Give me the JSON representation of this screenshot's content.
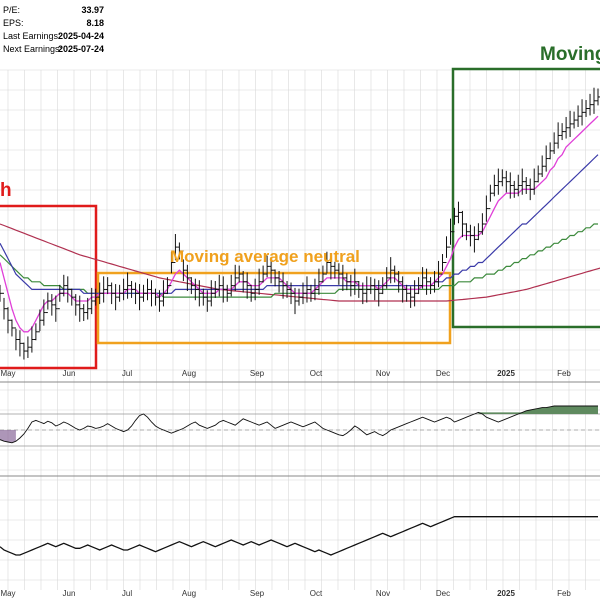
{
  "stats": [
    {
      "label": "P/E:",
      "value": "33.97"
    },
    {
      "label": "EPS:",
      "value": "8.18"
    },
    {
      "label": "Last Earnings:",
      "value": "2025-04-24"
    },
    {
      "label": "Next Earnings:",
      "value": "2025-07-24"
    }
  ],
  "annotations": {
    "left_fragment": "h",
    "neutral": "Moving average neutral",
    "right_fragment": "Moving"
  },
  "colors": {
    "red": "#e01b1b",
    "orange": "#f0a11e",
    "green": "#2a6e2a",
    "price": "#111111",
    "ma_pink": "#e040d8",
    "ma_blue": "#3a3aa8",
    "ma_green": "#3c8a3c",
    "ma_maroon": "#b03050",
    "rsi_fill": "#5f8a5f",
    "grid": "#d8d8d8"
  },
  "chart_data": [
    {
      "type": "line",
      "title": "",
      "x_axis_labels": [
        "May",
        "Jun",
        "Jul",
        "Aug",
        "Sep",
        "Oct",
        "Nov",
        "Dec",
        "2025",
        "Feb"
      ],
      "series": [
        {
          "role": "price",
          "values": [
            62,
            58,
            55,
            53,
            50,
            49,
            47,
            48,
            50,
            52,
            55,
            57,
            60,
            59,
            58,
            62,
            64,
            63,
            61,
            59,
            58,
            57,
            58,
            60,
            61,
            62,
            63,
            64,
            62,
            61,
            62,
            63,
            64,
            63,
            62,
            61,
            62,
            63,
            62,
            61,
            60,
            62,
            64,
            70,
            74,
            73,
            68,
            66,
            64,
            63,
            62,
            61,
            60,
            62,
            63,
            64,
            63,
            62,
            64,
            66,
            67,
            65,
            64,
            62,
            63,
            65,
            67,
            69,
            68,
            66,
            65,
            64,
            63,
            62,
            60,
            61,
            62,
            63,
            62,
            63,
            65,
            67,
            70,
            69,
            68,
            67,
            66,
            65,
            64,
            65,
            63,
            62,
            63,
            64,
            63,
            62,
            64,
            66,
            68,
            67,
            65,
            63,
            62,
            61,
            62,
            64,
            66,
            65,
            64,
            65,
            67,
            70,
            74,
            78,
            82,
            83,
            80,
            78,
            77,
            76,
            78,
            80,
            84,
            88,
            90,
            91,
            92,
            91,
            90,
            89,
            90,
            91,
            90,
            89,
            91,
            93,
            95,
            97,
            99,
            101,
            103,
            104,
            105,
            106,
            107,
            108,
            109,
            110,
            111,
            112,
            113
          ]
        },
        {
          "role": "ma_pink",
          "values": [
            70,
            66,
            62,
            58,
            55,
            53,
            52,
            52,
            53,
            55,
            57,
            59,
            60,
            60,
            61,
            62,
            62,
            62,
            61,
            60,
            60,
            60,
            60,
            61,
            61,
            62,
            62,
            62,
            62,
            62,
            62,
            62,
            63,
            63,
            63,
            62,
            62,
            62,
            62,
            62,
            61,
            62,
            63,
            65,
            67,
            68,
            67,
            66,
            65,
            64,
            63,
            62,
            62,
            62,
            62,
            63,
            63,
            63,
            63,
            64,
            65,
            65,
            65,
            64,
            64,
            64,
            65,
            66,
            66,
            66,
            66,
            65,
            64,
            63,
            62,
            62,
            62,
            62,
            62,
            63,
            64,
            65,
            66,
            66,
            66,
            66,
            66,
            65,
            65,
            65,
            64,
            64,
            64,
            64,
            64,
            63,
            64,
            65,
            66,
            66,
            65,
            64,
            63,
            63,
            63,
            63,
            64,
            64,
            64,
            65,
            66,
            67,
            69,
            71,
            74,
            76,
            77,
            77,
            77,
            77,
            77,
            78,
            80,
            82,
            84,
            86,
            87,
            88,
            88,
            88,
            88,
            89,
            89,
            89,
            89,
            90,
            91,
            92,
            94,
            95,
            97,
            98,
            100,
            101,
            102,
            103,
            104,
            105,
            106,
            107,
            108
          ]
        },
        {
          "role": "ma_blue",
          "values": [
            75,
            73,
            71,
            69,
            67,
            66,
            65,
            64,
            63,
            63,
            63,
            63,
            63,
            63,
            63,
            63,
            63,
            63,
            63,
            63,
            63,
            62,
            62,
            62,
            62,
            62,
            62,
            62,
            62,
            62,
            62,
            62,
            62,
            62,
            62,
            62,
            62,
            62,
            62,
            62,
            62,
            62,
            62,
            62,
            63,
            63,
            63,
            63,
            63,
            63,
            63,
            63,
            63,
            63,
            63,
            63,
            63,
            63,
            63,
            63,
            63,
            63,
            63,
            63,
            63,
            63,
            63,
            64,
            64,
            64,
            64,
            64,
            64,
            64,
            64,
            64,
            64,
            64,
            64,
            64,
            64,
            64,
            64,
            64,
            64,
            64,
            64,
            64,
            64,
            64,
            64,
            64,
            64,
            64,
            64,
            64,
            64,
            64,
            64,
            64,
            64,
            64,
            64,
            64,
            64,
            64,
            64,
            64,
            64,
            65,
            65,
            65,
            66,
            66,
            67,
            67,
            68,
            68,
            69,
            69,
            70,
            70,
            71,
            72,
            73,
            74,
            75,
            76,
            77,
            78,
            79,
            80,
            80,
            81,
            82,
            83,
            84,
            85,
            86,
            87,
            88,
            89,
            90,
            91,
            92,
            93,
            94,
            95,
            96,
            97,
            98
          ]
        },
        {
          "role": "ma_green",
          "values": [
            72,
            71,
            70,
            69,
            68,
            67,
            66,
            66,
            65,
            65,
            65,
            64,
            64,
            64,
            64,
            64,
            63,
            63,
            63,
            63,
            63,
            63,
            62,
            62,
            62,
            62,
            62,
            62,
            62,
            62,
            62,
            62,
            62,
            62,
            62,
            62,
            62,
            62,
            62,
            62,
            62,
            61,
            61,
            61,
            61,
            61,
            61,
            61,
            61,
            61,
            61,
            61,
            61,
            61,
            61,
            61,
            61,
            61,
            61,
            61,
            61,
            61,
            61,
            61,
            61,
            61,
            61,
            61,
            61,
            62,
            62,
            62,
            62,
            62,
            62,
            62,
            62,
            62,
            62,
            62,
            62,
            62,
            62,
            62,
            62,
            63,
            63,
            63,
            63,
            63,
            63,
            63,
            63,
            63,
            63,
            63,
            63,
            63,
            63,
            63,
            63,
            63,
            63,
            63,
            63,
            63,
            63,
            63,
            63,
            63,
            63,
            64,
            64,
            64,
            64,
            65,
            65,
            65,
            65,
            66,
            66,
            66,
            67,
            67,
            67,
            68,
            68,
            69,
            69,
            70,
            70,
            71,
            71,
            72,
            72,
            73,
            73,
            74,
            74,
            75,
            75,
            76,
            76,
            77,
            77,
            78,
            78,
            79,
            79,
            80,
            80
          ]
        },
        {
          "role": "ma_maroon",
          "values": [
            80,
            79.6,
            79.2,
            78.8,
            78.4,
            78,
            77.6,
            77.2,
            76.8,
            76.4,
            76,
            75.6,
            75.2,
            74.8,
            74.4,
            74,
            73.6,
            73.2,
            72.8,
            72.4,
            72,
            71.7,
            71.4,
            71.1,
            70.8,
            70.5,
            70.2,
            69.9,
            69.6,
            69.3,
            69,
            68.7,
            68.4,
            68.1,
            67.8,
            67.5,
            67.2,
            66.9,
            66.6,
            66.3,
            66,
            65.8,
            65.6,
            65.4,
            65.2,
            65,
            64.8,
            64.6,
            64.4,
            64.2,
            64,
            63.8,
            63.6,
            63.4,
            63.2,
            63,
            62.9,
            62.8,
            62.7,
            62.6,
            62.5,
            62.4,
            62.3,
            62.2,
            62.1,
            62,
            61.9,
            61.8,
            61.7,
            61.6,
            61.5,
            61.4,
            61.3,
            61.2,
            61.1,
            61,
            60.9,
            60.8,
            60.7,
            60.6,
            60.5,
            60.4,
            60.3,
            60.2,
            60.1,
            60,
            60,
            60,
            60,
            60,
            60,
            60,
            60,
            60,
            60,
            60,
            60,
            60,
            60,
            60,
            60,
            60,
            60,
            60,
            60,
            60,
            60,
            60,
            60,
            60,
            60,
            60,
            60,
            60.1,
            60.2,
            60.3,
            60.4,
            60.5,
            60.6,
            60.7,
            60.8,
            60.9,
            61,
            61.2,
            61.4,
            61.6,
            61.8,
            62,
            62.2,
            62.4,
            62.6,
            62.8,
            63,
            63.3,
            63.6,
            63.9,
            64.2,
            64.5,
            64.8,
            65.1,
            65.4,
            65.7,
            66,
            66.3,
            66.6,
            66.9,
            67.2,
            67.5,
            67.8,
            68.1,
            68.4,
            68.7,
            69
          ]
        },
        {
          "role": "rsi",
          "values": [
            38,
            36,
            35,
            34,
            36,
            40,
            45,
            52,
            60,
            62,
            60,
            58,
            61,
            59,
            55,
            57,
            60,
            58,
            55,
            52,
            50,
            52,
            55,
            54,
            52,
            53,
            55,
            58,
            55,
            52,
            50,
            48,
            50,
            55,
            62,
            68,
            70,
            66,
            60,
            55,
            52,
            50,
            48,
            46,
            48,
            50,
            52,
            55,
            58,
            60,
            56,
            54,
            52,
            54,
            56,
            60,
            62,
            60,
            58,
            56,
            60,
            64,
            62,
            60,
            58,
            56,
            58,
            60,
            56,
            52,
            54,
            56,
            58,
            60,
            58,
            56,
            54,
            56,
            58,
            60,
            56,
            52,
            50,
            48,
            46,
            44,
            43,
            46,
            50,
            55,
            52,
            48,
            44,
            46,
            48,
            45,
            43,
            46,
            50,
            52,
            54,
            56,
            58,
            60,
            62,
            64,
            66,
            64,
            62,
            60,
            62,
            64,
            66,
            64,
            60,
            62,
            64,
            66,
            68,
            70,
            72,
            70,
            66,
            64,
            62,
            60,
            62,
            64,
            66,
            68,
            70,
            72,
            74,
            75,
            76,
            77,
            78,
            78,
            79,
            80,
            80,
            80,
            80,
            80,
            80,
            80,
            80,
            80,
            80,
            80,
            80
          ]
        },
        {
          "role": "lower_line",
          "values": [
            20,
            18,
            17,
            16,
            15,
            15,
            16,
            17,
            18,
            19,
            20,
            21,
            22,
            21,
            20,
            21,
            22,
            21,
            20,
            19,
            19,
            20,
            21,
            20,
            19,
            18,
            19,
            20,
            21,
            20,
            19,
            18,
            18,
            19,
            20,
            21,
            20,
            19,
            18,
            17,
            18,
            19,
            20,
            21,
            22,
            23,
            22,
            21,
            20,
            21,
            22,
            23,
            22,
            21,
            20,
            21,
            22,
            23,
            24,
            23,
            22,
            21,
            22,
            23,
            22,
            21,
            22,
            23,
            24,
            23,
            22,
            21,
            20,
            21,
            22,
            21,
            20,
            19,
            18,
            17,
            18,
            17,
            16,
            15,
            16,
            17,
            18,
            19,
            20,
            21,
            22,
            23,
            24,
            25,
            26,
            27,
            28,
            27,
            26,
            27,
            28,
            29,
            30,
            31,
            32,
            33,
            34,
            33,
            32,
            33,
            34,
            35,
            36,
            37,
            38,
            38,
            38,
            38,
            38,
            38,
            38,
            38,
            38,
            38,
            38,
            38,
            38,
            38,
            38,
            38,
            38,
            38,
            38,
            38,
            38,
            38,
            38,
            38,
            38,
            38,
            38,
            38,
            38,
            38,
            38,
            38,
            38,
            38,
            38,
            38,
            38
          ]
        }
      ],
      "price_range": [
        40,
        120
      ],
      "rsi_range": [
        0,
        100
      ],
      "lower_range": [
        0,
        60
      ],
      "grid": true
    }
  ]
}
